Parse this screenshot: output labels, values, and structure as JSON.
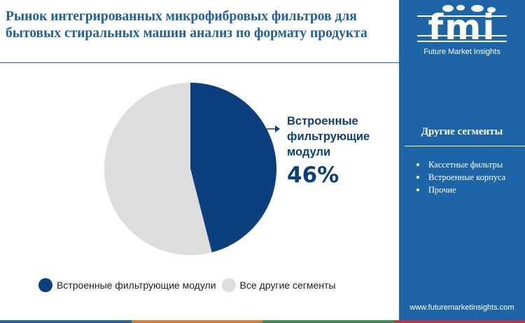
{
  "header": {
    "title": "Рынок интегрированных микрофибровых фильтров для бытовых стиральных машин анализ по формату продукта"
  },
  "chart_data": {
    "type": "pie",
    "slices": [
      {
        "label": "Встроенные фильтрующие модули",
        "value": 46,
        "color": "#0b3f7e"
      },
      {
        "label": "Все другие сегменты",
        "value": 54,
        "color": "#dddddd"
      }
    ],
    "callout": {
      "label": "Встроенные фильтрующие модули",
      "value_text": "46%"
    },
    "legend_placement": "bottom"
  },
  "legend": {
    "items": [
      {
        "label": "Встроенные фильтрующие модули",
        "color": "#0b3f7e"
      },
      {
        "label": "Все другие сегменты",
        "color": "#dddddd"
      }
    ]
  },
  "sidebar": {
    "logo_text": "fmi",
    "logo_subtitle": "Future Market Insights",
    "segments_heading": "Другие сегменты",
    "segments": [
      "Кассетные фильтры",
      "Встроенные корпуса",
      "Прочие"
    ],
    "website": "www.futuremarketinsights.com",
    "bg_color": "#1e65a8"
  },
  "bottom_strip_colors": [
    "#1e65a8",
    "#e07a2b",
    "#3a8f4f",
    "#c8323a"
  ]
}
